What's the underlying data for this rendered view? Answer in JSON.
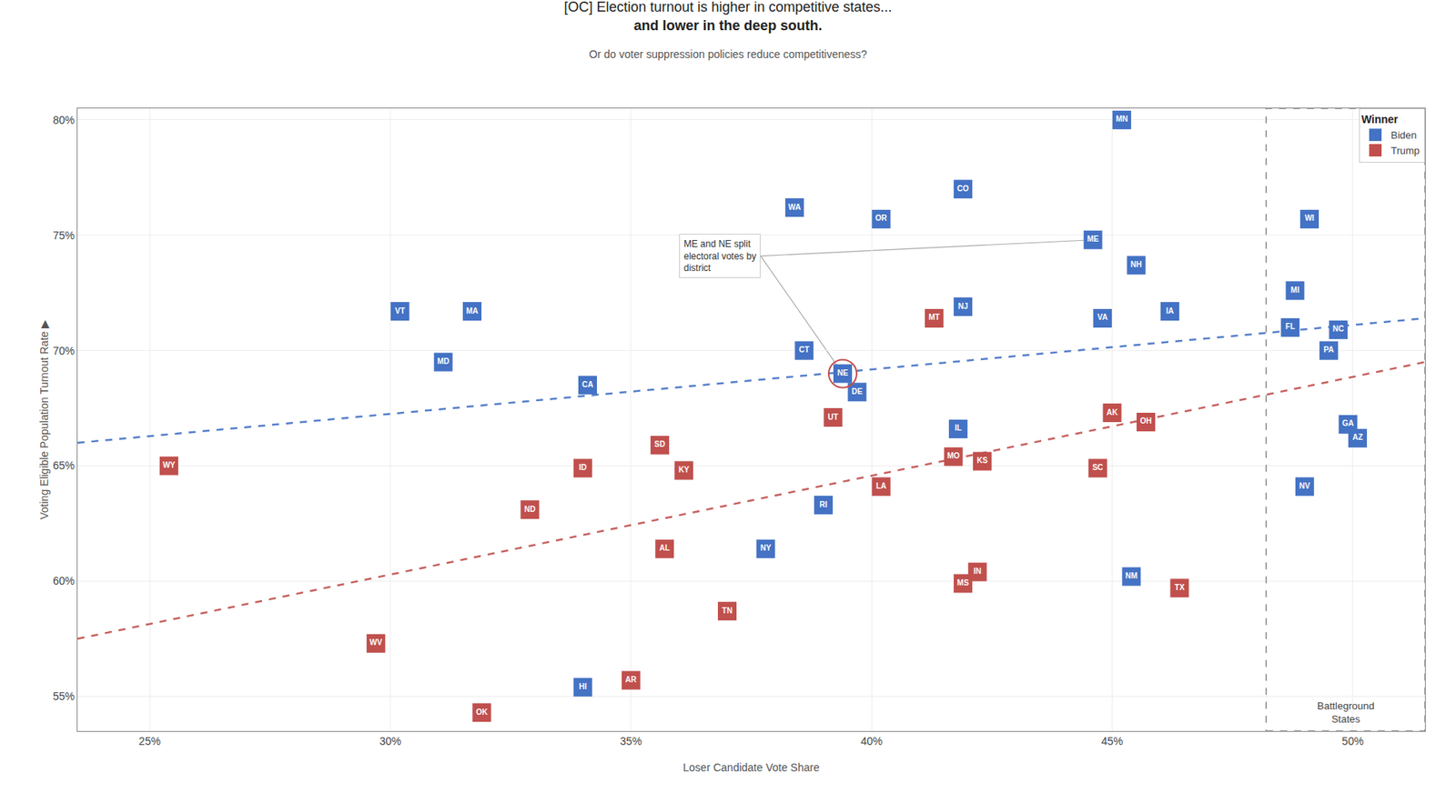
{
  "chart_data": {
    "type": "scatter",
    "title": "[OC] Election turnout is higher in competitive states...\nand lower in the deep south.",
    "subtitle": "Or do voter suppression policies reduce competitiveness?",
    "xlabel": "Loser Candidate Vote Share",
    "ylabel": "Voting Eligible Population Turnout Rate ▶",
    "xlim": [
      0.235,
      0.515
    ],
    "ylim": [
      0.535,
      0.805
    ],
    "xticks": [
      {
        "value": 0.25,
        "label": "25%"
      },
      {
        "value": 0.3,
        "label": "30%"
      },
      {
        "value": 0.35,
        "label": "35%"
      },
      {
        "value": 0.4,
        "label": "40%"
      },
      {
        "value": 0.45,
        "label": "45%"
      },
      {
        "value": 0.5,
        "label": "50%"
      }
    ],
    "yticks": [
      {
        "value": 0.55,
        "label": "55%"
      },
      {
        "value": 0.6,
        "label": "60%"
      },
      {
        "value": 0.65,
        "label": "65%"
      },
      {
        "value": 0.7,
        "label": "70%"
      },
      {
        "value": 0.75,
        "label": "75%"
      },
      {
        "value": 0.8,
        "label": "80%"
      }
    ],
    "grid": true,
    "legend": "upper right",
    "legend_title": "Winner",
    "marker": "square",
    "series": [
      {
        "name": "Biden",
        "color": "#4472C4",
        "labels": [
          "MN",
          "CO",
          "WA",
          "OR",
          "ME",
          "NH",
          "VT",
          "MA",
          "MD",
          "CA",
          "NJ",
          "CT",
          "NE",
          "DE",
          "VA",
          "IA",
          "IL",
          "RI",
          "NY",
          "NM",
          "HI",
          "WI",
          "MI",
          "FL",
          "NC",
          "PA",
          "GA",
          "AZ",
          "NV"
        ],
        "x": [
          0.452,
          0.419,
          0.384,
          0.402,
          0.446,
          0.455,
          0.302,
          0.317,
          0.311,
          0.341,
          0.419,
          0.386,
          0.394,
          0.397,
          0.448,
          0.462,
          0.418,
          0.39,
          0.378,
          0.454,
          0.34,
          0.491,
          0.488,
          0.487,
          0.497,
          0.495,
          0.499,
          0.501,
          0.49
        ],
        "values": [
          0.8,
          0.77,
          0.762,
          0.757,
          0.748,
          0.737,
          0.717,
          0.717,
          0.695,
          0.685,
          0.719,
          0.7,
          0.69,
          0.682,
          0.714,
          0.717,
          0.666,
          0.633,
          0.614,
          0.602,
          0.554,
          0.757,
          0.726,
          0.71,
          0.709,
          0.7,
          0.668,
          0.662,
          0.641
        ]
      },
      {
        "name": "Trump",
        "color": "#C0504D",
        "labels": [
          "WY",
          "WV",
          "OK",
          "ND",
          "ID",
          "AR",
          "SD",
          "KY",
          "AL",
          "TN",
          "UT",
          "LA",
          "MO",
          "KS",
          "MT",
          "IN",
          "MS",
          "SC",
          "AK",
          "OH",
          "TX"
        ],
        "x": [
          0.254,
          0.297,
          0.319,
          0.329,
          0.34,
          0.35,
          0.356,
          0.361,
          0.357,
          0.37,
          0.392,
          0.402,
          0.417,
          0.423,
          0.413,
          0.422,
          0.419,
          0.447,
          0.45,
          0.457,
          0.464
        ],
        "values": [
          0.65,
          0.573,
          0.543,
          0.631,
          0.649,
          0.557,
          0.659,
          0.648,
          0.614,
          0.587,
          0.671,
          0.641,
          0.654,
          0.652,
          0.714,
          0.604,
          0.599,
          0.649,
          0.673,
          0.669,
          0.597
        ]
      }
    ],
    "trend_lines": [
      {
        "color": "#4472C4",
        "line_style": "dashed",
        "x": [
          0.235,
          0.515
        ],
        "values": [
          0.66,
          0.714
        ]
      },
      {
        "color": "#C0504D",
        "line_style": "dashed",
        "x": [
          0.235,
          0.515
        ],
        "values": [
          0.575,
          0.695
        ]
      }
    ],
    "battleground": {
      "x_from": 0.482,
      "label": "Battleground\nStates"
    },
    "annotation": {
      "text": "ME and NE split\nelectoral votes by\ndistrict",
      "states": [
        "ME",
        "NE"
      ]
    },
    "highlight": {
      "state": "NE",
      "color": "#C0504D"
    }
  }
}
